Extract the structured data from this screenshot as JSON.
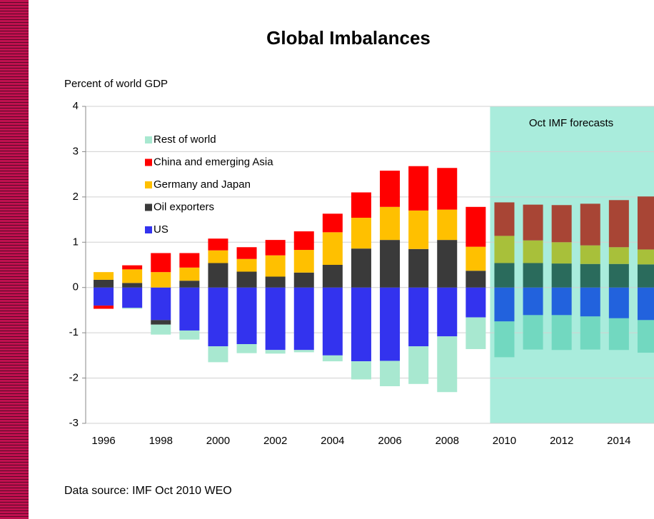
{
  "chart_data": {
    "type": "stacked_bar",
    "title": "Global Imbalances",
    "y_axis_label": "Percent of world GDP",
    "source": "Data source: IMF Oct 2010 WEO",
    "categories": [
      "1996",
      null,
      "1998",
      null,
      "2000",
      null,
      "2002",
      null,
      "2004",
      null,
      "2006",
      null,
      "2008",
      null,
      "2010",
      null,
      "2012",
      null,
      "2014",
      null
    ],
    "forecast": {
      "label": "Oct IMF forecasts",
      "start": "2010",
      "color": "#a9ecdc"
    },
    "series": [
      {
        "name": "US",
        "color": "#3333ee",
        "forecast_color": "#2262dd",
        "values": [
          -0.4,
          -0.45,
          -0.72,
          -0.95,
          -1.3,
          -1.25,
          -1.38,
          -1.38,
          -1.5,
          -1.63,
          -1.62,
          -1.3,
          -1.08,
          -0.66,
          -0.75,
          -0.61,
          -0.61,
          -0.64,
          -0.68,
          -0.72
        ]
      },
      {
        "name": "Oil exporters",
        "color": "#3a3a3a",
        "forecast_color": "#2a6b5c",
        "values": [
          0.17,
          0.1,
          -0.1,
          0.15,
          0.54,
          0.35,
          0.24,
          0.33,
          0.5,
          0.86,
          1.05,
          0.85,
          1.05,
          0.37,
          0.54,
          0.54,
          0.53,
          0.52,
          0.52,
          0.51
        ]
      },
      {
        "name": "Germany and Japan",
        "color": "#ffc000",
        "forecast_color": "#a8c03a",
        "values": [
          0.17,
          0.3,
          0.34,
          0.29,
          0.28,
          0.28,
          0.47,
          0.5,
          0.72,
          0.68,
          0.73,
          0.85,
          0.67,
          0.53,
          0.6,
          0.5,
          0.47,
          0.41,
          0.37,
          0.33
        ]
      },
      {
        "name": "China and emerging Asia",
        "color": "#ff0000",
        "forecast_color": "#a84535",
        "values": [
          -0.07,
          0.09,
          0.42,
          0.32,
          0.26,
          0.26,
          0.34,
          0.41,
          0.41,
          0.56,
          0.8,
          0.98,
          0.92,
          0.88,
          0.74,
          0.79,
          0.82,
          0.92,
          1.04,
          1.17
        ]
      },
      {
        "name": "Rest of world",
        "color": "#a8e8d0",
        "forecast_color": "#72d8c0",
        "values": [
          0,
          -0.02,
          -0.22,
          -0.2,
          -0.35,
          -0.2,
          -0.08,
          -0.05,
          -0.13,
          -0.4,
          -0.56,
          -0.83,
          -1.23,
          -0.7,
          -0.79,
          -0.76,
          -0.77,
          -0.73,
          -0.7,
          -0.72
        ]
      }
    ],
    "ylim": [
      -3,
      4
    ],
    "yticks": [
      -3,
      -2,
      -1,
      0,
      1,
      2,
      3,
      4
    ],
    "grid": true
  }
}
